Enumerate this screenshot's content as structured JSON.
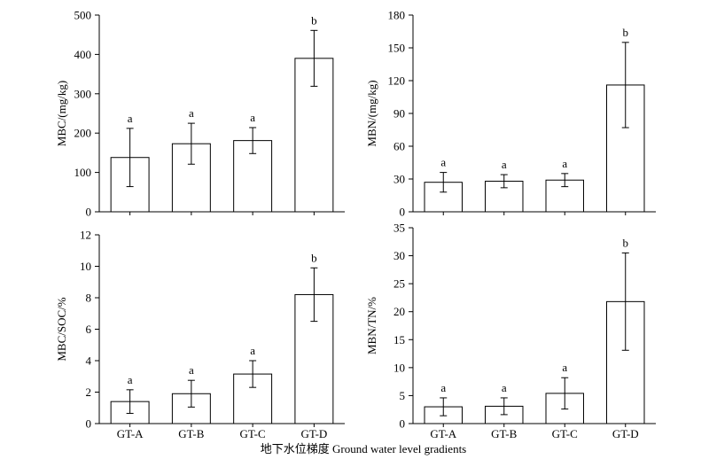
{
  "figure": {
    "xlabel": "地下水位梯度 Ground water level gradients"
  },
  "chart_data": [
    {
      "type": "bar",
      "panel": "top-left",
      "categories": [
        "GT-A",
        "GT-B",
        "GT-C",
        "GT-D"
      ],
      "values": [
        138,
        173,
        181,
        390
      ],
      "errors": [
        74,
        52,
        33,
        71
      ],
      "letters": [
        "a",
        "a",
        "a",
        "b"
      ],
      "ylabel": "MBC/(mg/kg)",
      "ylim": [
        0,
        500
      ],
      "yticks": [
        0,
        100,
        200,
        300,
        400,
        500
      ],
      "show_xticklabels": false
    },
    {
      "type": "bar",
      "panel": "top-right",
      "categories": [
        "GT-A",
        "GT-B",
        "GT-C",
        "GT-D"
      ],
      "values": [
        27,
        28,
        29,
        116
      ],
      "errors": [
        9,
        6,
        6,
        39
      ],
      "letters": [
        "a",
        "a",
        "a",
        "b"
      ],
      "ylabel": "MBN/(mg/kg)",
      "ylim": [
        0,
        180
      ],
      "yticks": [
        0,
        30,
        60,
        90,
        120,
        150,
        180
      ],
      "show_xticklabels": false
    },
    {
      "type": "bar",
      "panel": "bottom-left",
      "categories": [
        "GT-A",
        "GT-B",
        "GT-C",
        "GT-D"
      ],
      "values": [
        1.4,
        1.9,
        3.15,
        8.2
      ],
      "errors": [
        0.75,
        0.85,
        0.85,
        1.7
      ],
      "letters": [
        "a",
        "a",
        "a",
        "b"
      ],
      "ylabel": "MBC/SOC/%",
      "ylim": [
        0,
        12
      ],
      "yticks": [
        0,
        2,
        4,
        6,
        8,
        10,
        12
      ],
      "show_xticklabels": true
    },
    {
      "type": "bar",
      "panel": "bottom-right",
      "categories": [
        "GT-A",
        "GT-B",
        "GT-C",
        "GT-D"
      ],
      "values": [
        3.0,
        3.1,
        5.4,
        21.8
      ],
      "errors": [
        1.6,
        1.5,
        2.8,
        8.7
      ],
      "letters": [
        "a",
        "a",
        "a",
        "b"
      ],
      "ylabel": "MBN/TN/%",
      "ylim": [
        0,
        35
      ],
      "yticks": [
        0,
        5,
        10,
        15,
        20,
        25,
        30,
        35
      ],
      "show_xticklabels": true
    }
  ]
}
